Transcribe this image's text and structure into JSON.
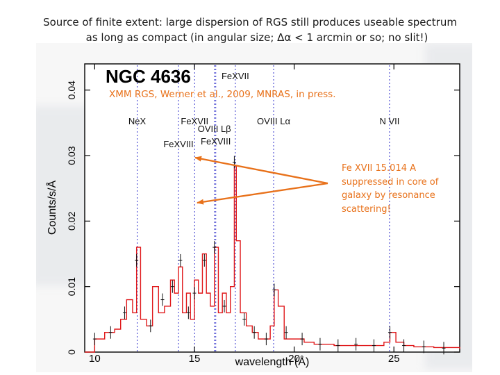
{
  "slide": {
    "title_line1": "Source of finite extent: large dispersion of RGS still produces useable spectrum",
    "title_line2": "as long as compact (in angular size; Δα < 1 arcmin or so; no slit!)"
  },
  "annotations": {
    "credit": "XMM RGS, Werner et al., 2009, MNRAS, in press.",
    "note": "Fe XVII 15.014 A suppressed in core of galaxy by resonance scattering!",
    "arrow_color": "#e8711a"
  },
  "chart_data": {
    "type": "line",
    "title": "NGC 4636",
    "xlabel": "wavelength (Å)",
    "ylabel": "Counts/s/Å",
    "xlim": [
      9.5,
      28.3
    ],
    "ylim": [
      0,
      0.044
    ],
    "x_ticks": [
      10,
      15,
      20,
      25
    ],
    "x_tick_labels": [
      "10",
      "15",
      "20",
      "25"
    ],
    "y_ticks": [
      0,
      0.01,
      0.02,
      0.03,
      0.04
    ],
    "y_tick_labels": [
      "0",
      "0.01",
      "0.02",
      "0.03",
      "0.04"
    ],
    "line_markers": [
      {
        "label": "NeX",
        "x": 12.13
      },
      {
        "label": "FeXVIII",
        "x": 14.2
      },
      {
        "label": "FeXVII",
        "x": 15.01
      },
      {
        "label": "FeXVIII",
        "x": 16.07
      },
      {
        "label": "OVIII Lβ",
        "x": 16.0
      },
      {
        "label": "FeXVII",
        "x": 17.05
      },
      {
        "label": "OVIII Lα",
        "x": 18.97
      },
      {
        "label": "N VII",
        "x": 24.78
      }
    ],
    "series": [
      {
        "color": "#e0191b",
        "x": [
          9.5,
          10.0,
          10.5,
          11.0,
          11.3,
          11.6,
          11.9,
          12.1,
          12.3,
          12.6,
          12.9,
          13.2,
          13.5,
          13.8,
          14.0,
          14.2,
          14.4,
          14.6,
          14.8,
          15.0,
          15.2,
          15.4,
          15.6,
          15.8,
          16.0,
          16.2,
          16.4,
          16.6,
          16.8,
          17.0,
          17.1,
          17.3,
          17.6,
          17.9,
          18.2,
          18.5,
          18.8,
          19.0,
          19.2,
          19.5,
          20.0,
          20.5,
          21.0,
          22.0,
          23.0,
          24.0,
          24.5,
          24.8,
          25.1,
          25.5,
          26.0,
          27.0,
          28.3
        ],
        "y": [
          0.0,
          0.002,
          0.003,
          0.0035,
          0.005,
          0.008,
          0.006,
          0.016,
          0.005,
          0.004,
          0.01,
          0.006,
          0.007,
          0.011,
          0.009,
          0.013,
          0.006,
          0.009,
          0.005,
          0.011,
          0.009,
          0.015,
          0.009,
          0.007,
          0.016,
          0.006,
          0.009,
          0.006,
          0.01,
          0.0285,
          0.017,
          0.006,
          0.004,
          0.003,
          0.002,
          0.002,
          0.004,
          0.0095,
          0.007,
          0.002,
          0.002,
          0.0015,
          0.0012,
          0.001,
          0.001,
          0.001,
          0.0015,
          0.003,
          0.0015,
          0.001,
          0.0008,
          0.0007,
          0.0005
        ]
      },
      {
        "color": "#111111",
        "x": [
          10.0,
          10.8,
          11.5,
          12.1,
          12.8,
          13.4,
          13.9,
          14.3,
          14.7,
          15.0,
          15.5,
          16.0,
          16.5,
          17.0,
          17.5,
          18.0,
          18.6,
          19.0,
          19.6,
          20.4,
          21.3,
          22.2,
          23.1,
          24.0,
          24.8,
          25.5,
          26.5,
          27.5
        ],
        "y": [
          0.002,
          0.003,
          0.006,
          0.014,
          0.004,
          0.008,
          0.01,
          0.014,
          0.006,
          0.009,
          0.014,
          0.016,
          0.007,
          0.029,
          0.005,
          0.003,
          0.002,
          0.0095,
          0.003,
          0.002,
          0.0012,
          0.001,
          0.0012,
          0.001,
          0.003,
          0.001,
          0.0008,
          0.0006
        ]
      }
    ]
  }
}
